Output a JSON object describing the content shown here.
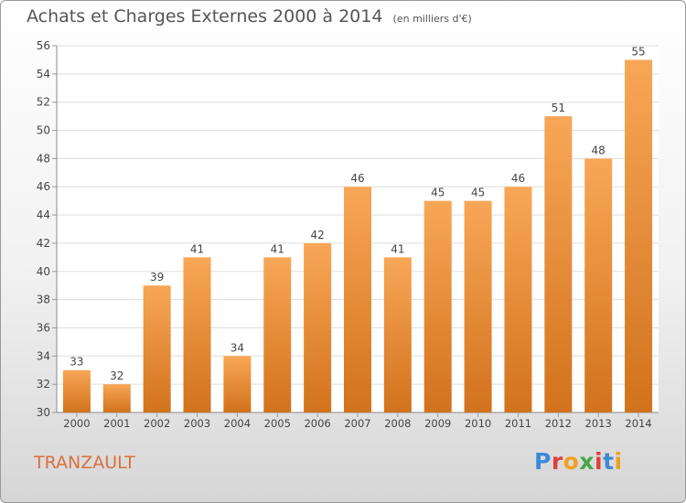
{
  "header": {
    "title": "Achats et Charges Externes 2000 à 2014",
    "unit": "(en milliers d'€)"
  },
  "footer": {
    "commune": "TRANZAULT",
    "logo_text": "Proxiti",
    "logo_colors": [
      "#3a8ad6",
      "#e0403c",
      "#f0a020",
      "#44a844",
      "#e0403c",
      "#3a8ad6",
      "#f0a020"
    ]
  },
  "chart_data": {
    "type": "bar",
    "title": "Achats et Charges Externes 2000 à 2014",
    "subtitle": "(en milliers d'€)",
    "categories": [
      "2000",
      "2001",
      "2002",
      "2003",
      "2004",
      "2005",
      "2006",
      "2007",
      "2008",
      "2009",
      "2010",
      "2011",
      "2012",
      "2013",
      "2014"
    ],
    "values": [
      33,
      32,
      39,
      41,
      34,
      41,
      42,
      46,
      41,
      45,
      45,
      46,
      51,
      48,
      55
    ],
    "ylim": [
      30,
      56
    ],
    "yticks": [
      30,
      32,
      34,
      36,
      38,
      40,
      42,
      44,
      46,
      48,
      50,
      52,
      54,
      56
    ],
    "grid": true,
    "bar_color_top": "#f8a757",
    "bar_color_bottom": "#d2721c",
    "data_labels": true
  }
}
